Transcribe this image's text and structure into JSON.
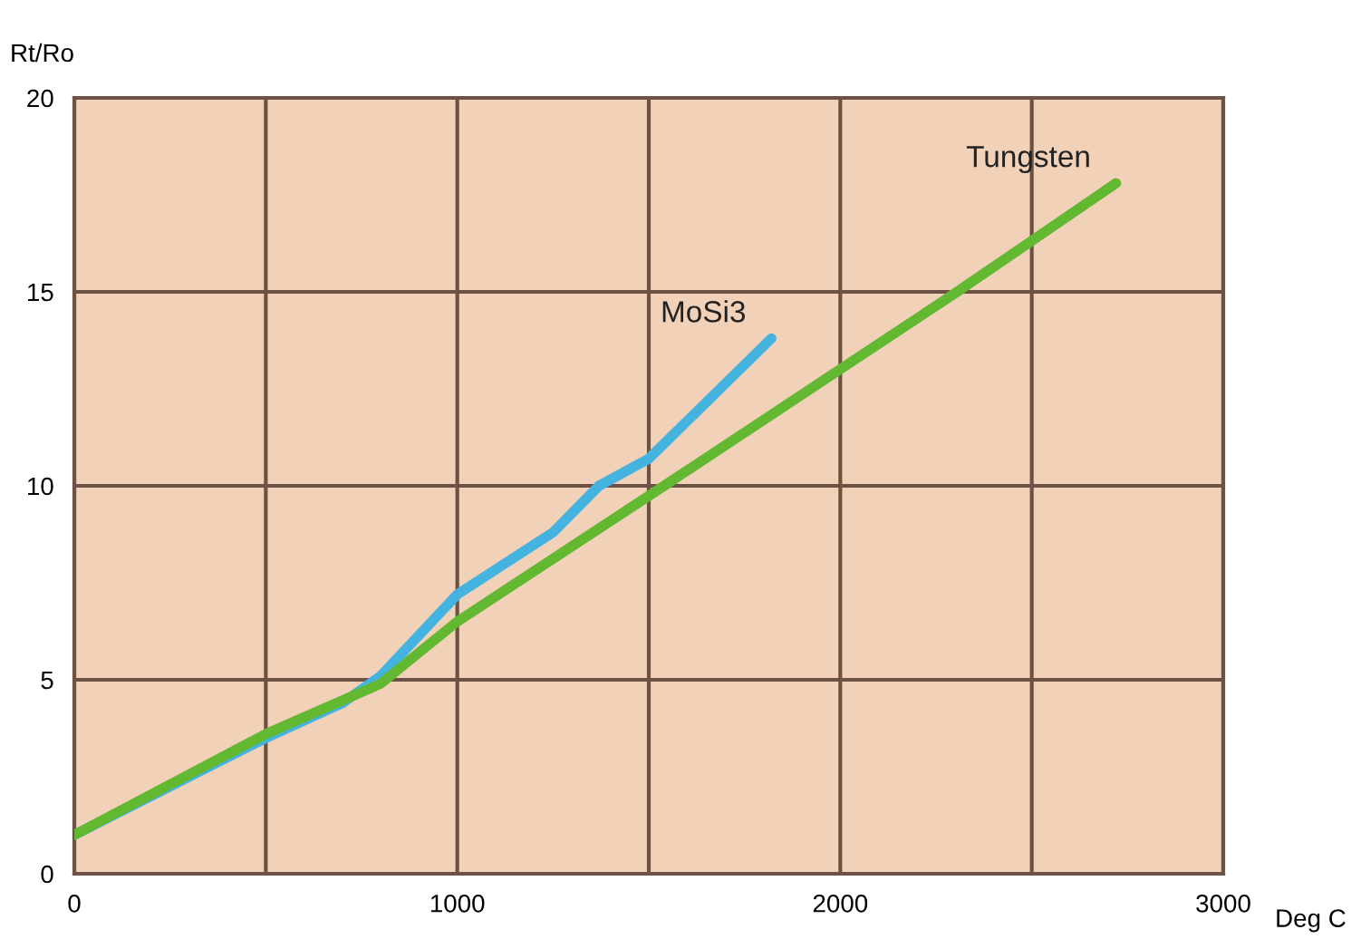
{
  "chart_data": {
    "type": "line",
    "ylabel": "Rt/Ro",
    "xlabel": "Deg C",
    "xlim": [
      0,
      3000
    ],
    "ylim": [
      0,
      20
    ],
    "xticks": [
      {
        "value": 0,
        "label": "0"
      },
      {
        "value": 500,
        "label": null
      },
      {
        "value": 1000,
        "label": "1000"
      },
      {
        "value": 1500,
        "label": null
      },
      {
        "value": 2000,
        "label": "2000"
      },
      {
        "value": 2500,
        "label": null
      },
      {
        "value": 3000,
        "label": "3000"
      }
    ],
    "yticks": [
      0,
      5,
      10,
      15,
      20
    ],
    "grid": true,
    "legend": false,
    "line_style": "solid",
    "marker": "none",
    "series": [
      {
        "name": "MoSi3",
        "color": "#45b3e0",
        "x": [
          0,
          400,
          500,
          700,
          800,
          1000,
          1250,
          1370,
          1500,
          1820
        ],
        "values": [
          1,
          3.0,
          3.5,
          4.4,
          5.1,
          7.2,
          8.8,
          10,
          10.7,
          13.8
        ]
      },
      {
        "name": "Tungsten",
        "color": "#62b830",
        "x": [
          0,
          500,
          800,
          1000,
          1540,
          2305,
          2720
        ],
        "values": [
          1,
          3.6,
          4.9,
          6.5,
          10,
          15,
          17.8
        ]
      }
    ]
  }
}
